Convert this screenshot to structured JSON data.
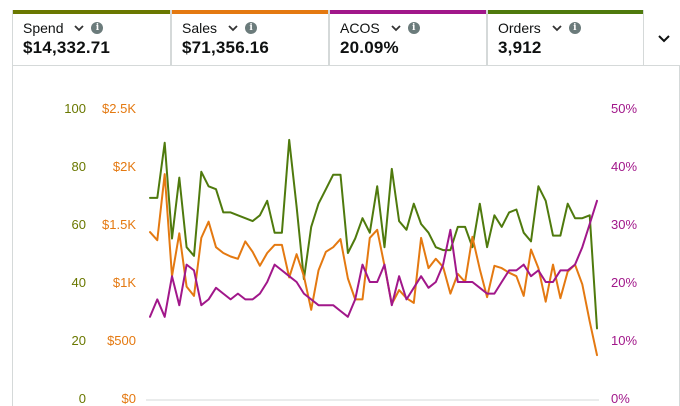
{
  "metrics": [
    {
      "label": "Spend",
      "value": "$14,332.71",
      "color": "#6a7800",
      "chevron_icon": "chevron-down-icon",
      "info_icon": "info-icon",
      "info_glyph": "i"
    },
    {
      "label": "Sales",
      "value": "$71,356.16",
      "color": "#e47911",
      "chevron_icon": "chevron-down-icon",
      "info_icon": "info-icon",
      "info_glyph": "i"
    },
    {
      "label": "ACOS",
      "value": "20.09%",
      "color": "#a1178a",
      "chevron_icon": "chevron-down-icon",
      "info_icon": "info-icon",
      "info_glyph": "i"
    },
    {
      "label": "Orders",
      "value": "3,912",
      "color": "#4f7a0d",
      "chevron_icon": "chevron-down-icon",
      "info_icon": "info-icon",
      "info_glyph": "i"
    }
  ],
  "expand_icon": "chevron-down-icon",
  "chart_data": {
    "type": "line",
    "title": "",
    "grid": false,
    "axes": {
      "orders": {
        "side": "left-outer",
        "range": [
          0,
          100
        ],
        "ticks": [
          "0",
          "20",
          "40",
          "60",
          "80",
          "100"
        ],
        "color": "#6a7800"
      },
      "sales": {
        "side": "left-inner",
        "range": [
          0,
          2500
        ],
        "ticks": [
          "$0",
          "$500",
          "$1K",
          "$1.5K",
          "$2K",
          "$2.5K"
        ],
        "color": "#e47911"
      },
      "acos": {
        "side": "right",
        "range": [
          0,
          50
        ],
        "ticks": [
          "0%",
          "10%",
          "20%",
          "30%",
          "40%",
          "50%"
        ],
        "color": "#a1178a"
      }
    },
    "series": [
      {
        "name": "Orders",
        "axis": "orders",
        "color": "#4f7a0d",
        "values": [
          69,
          69,
          88,
          55,
          76,
          52,
          49,
          78,
          73,
          72,
          64,
          64,
          63,
          62,
          61,
          63,
          68,
          57,
          57,
          89,
          66,
          41,
          59,
          67,
          72,
          77,
          77,
          50,
          55,
          62,
          57,
          73,
          52,
          79,
          61,
          58,
          67,
          60,
          57,
          52,
          51,
          51,
          59,
          59,
          52,
          67,
          52,
          63,
          59,
          64,
          65,
          57,
          54,
          73,
          68,
          56,
          56,
          67,
          62,
          62,
          63,
          24
        ]
      },
      {
        "name": "Sales",
        "axis": "sales",
        "color": "#e47911",
        "values": [
          1430,
          1360,
          1930,
          1050,
          1420,
          960,
          880,
          1380,
          1520,
          1300,
          1250,
          1220,
          1200,
          1350,
          1260,
          1140,
          1250,
          1320,
          1320,
          1040,
          1240,
          1050,
          760,
          1100,
          1260,
          1300,
          1370,
          1030,
          850,
          850,
          1380,
          1450,
          1140,
          810,
          930,
          860,
          820,
          1380,
          1120,
          1200,
          1130,
          900,
          1070,
          1000,
          1390,
          1110,
          870,
          1140,
          1120,
          1080,
          1050,
          880,
          1280,
          1120,
          830,
          1150,
          860,
          1090,
          1150,
          980,
          660,
          370
        ]
      },
      {
        "name": "ACOS",
        "axis": "acos",
        "color": "#a1178a",
        "values": [
          14,
          17,
          14,
          21,
          16,
          23,
          22,
          16,
          17,
          19,
          18,
          17,
          18,
          17,
          17,
          18,
          20,
          23,
          22,
          21,
          20,
          18,
          17,
          16,
          16,
          16,
          15,
          14,
          17,
          23,
          20,
          20,
          23,
          16,
          21,
          17,
          19,
          21,
          19,
          20,
          23,
          29,
          20,
          20,
          20,
          19,
          18,
          18,
          20,
          22,
          22,
          23,
          21,
          22,
          20,
          20,
          22,
          22,
          23,
          26,
          30,
          34
        ]
      }
    ]
  }
}
